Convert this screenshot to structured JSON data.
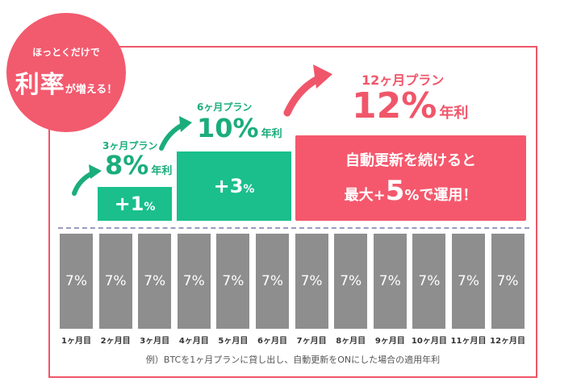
{
  "badge": {
    "line1": "ほっとくだけで",
    "big": "利率",
    "small": "が増える！"
  },
  "plans": [
    {
      "title": "3ヶ月プラン",
      "rate": "8%",
      "unit": "年利",
      "boost": "+1",
      "boost_unit": "%"
    },
    {
      "title": "6ヶ月プラン",
      "rate": "10%",
      "unit": "年利",
      "boost": "+3",
      "boost_unit": "%"
    },
    {
      "title": "12ヶ月プラン",
      "rate": "12%",
      "unit": "年利"
    }
  ],
  "promo": {
    "line1": "自動更新を続けると",
    "line2_a": "最大+",
    "line2_num": "5",
    "line2_b": "%で運用！"
  },
  "months": [
    {
      "label": "1ヶ月目",
      "rate": "7%"
    },
    {
      "label": "2ヶ月目",
      "rate": "7%"
    },
    {
      "label": "3ヶ月目",
      "rate": "7%"
    },
    {
      "label": "4ヶ月目",
      "rate": "7%"
    },
    {
      "label": "5ヶ月目",
      "rate": "7%"
    },
    {
      "label": "6ヶ月目",
      "rate": "7%"
    },
    {
      "label": "7ヶ月目",
      "rate": "7%"
    },
    {
      "label": "8ヶ月目",
      "rate": "7%"
    },
    {
      "label": "9ヶ月目",
      "rate": "7%"
    },
    {
      "label": "10ヶ月目",
      "rate": "7%"
    },
    {
      "label": "11ヶ月目",
      "rate": "7%"
    },
    {
      "label": "12ヶ月目",
      "rate": "7%"
    }
  ],
  "note": "例）BTCを1ヶ月プランに貸し出し、自動更新をONにした場合の適用年利",
  "colors": {
    "accent_red": "#f0566a",
    "accent_green": "#1abf8c",
    "bar_gray": "#8e8e8e"
  }
}
